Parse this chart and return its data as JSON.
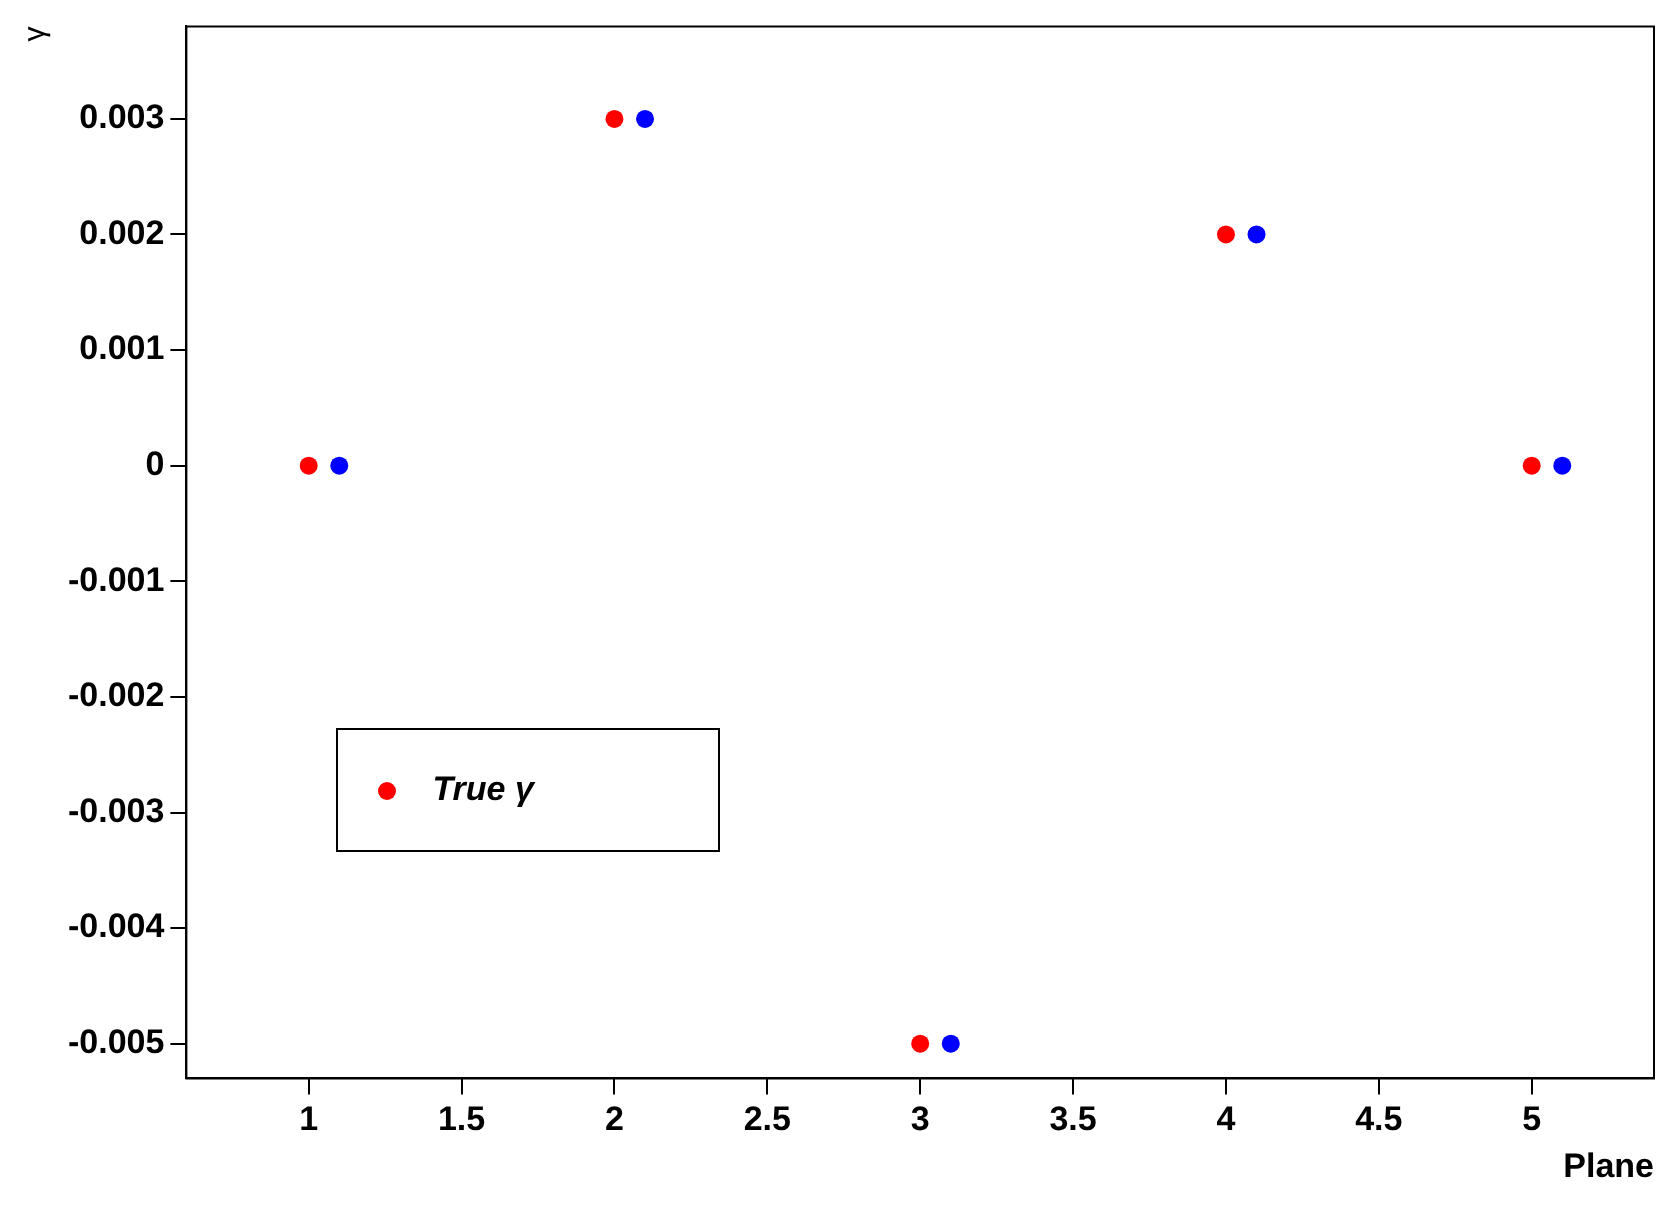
{
  "chart_data": {
    "type": "scatter",
    "xlabel": "Plane",
    "ylabel": "γ",
    "series": [
      {
        "name": "True γ",
        "color": "#ff0000",
        "x": [
          1,
          2,
          3,
          4,
          5
        ],
        "values": [
          0,
          0.003,
          -0.005,
          0.002,
          0
        ]
      },
      {
        "color": "#0000ff",
        "x": [
          1.1,
          2.1,
          3.1,
          4.1,
          5.1
        ],
        "values": [
          0,
          0.003,
          -0.005,
          0.002,
          0
        ]
      }
    ],
    "xlim": [
      0.6,
      5.4
    ],
    "xticks": [
      1,
      1.5,
      2,
      2.5,
      3,
      3.5,
      4,
      4.5,
      5
    ],
    "ylim": [
      -0.0053,
      0.0038
    ],
    "yticks": [
      -0.005,
      -0.004,
      -0.003,
      -0.002,
      -0.001,
      0,
      0.001,
      0.002,
      0.003
    ],
    "grid": false,
    "legend": "bottom left",
    "marker": "circle"
  }
}
